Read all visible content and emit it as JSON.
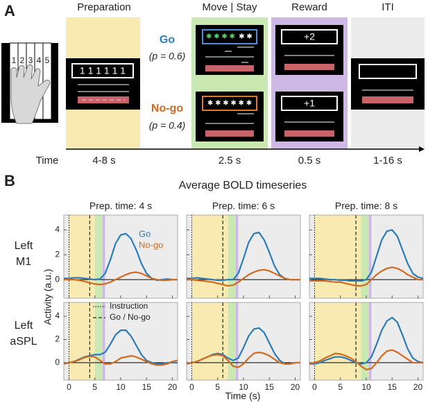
{
  "panel_a": {
    "label": "A",
    "phases": [
      "Preparation",
      "Move | Stay",
      "Reward",
      "ITI"
    ],
    "durations": [
      "4-8 s",
      "2.5 s",
      "0.5 s",
      "1-16 s"
    ],
    "time_label": "Time",
    "fingers": [
      "1",
      "2",
      "3",
      "4",
      "5"
    ],
    "prep_display": "1 1 1 1 1 1",
    "go": {
      "label": "Go",
      "prob": "(p = 0.6)",
      "color": "#2b7bb8",
      "stars_done": "✱ ✱ ✱ ✱",
      "stars_left": "✱ ✱",
      "reward": "+2"
    },
    "nogo": {
      "label": "No-go",
      "prob": "(p = 0.4)",
      "color": "#d2691e",
      "stars": "✱ ✱ ✱ ✱ ✱ ✱",
      "reward": "+1"
    }
  },
  "panel_b": {
    "label": "B",
    "title": "Average BOLD timeseries",
    "ylabel": "Activity (a.u.)",
    "xlabel": "Time (s)",
    "rows": [
      [
        "Left",
        "M1"
      ],
      [
        "Left",
        "aSPL"
      ]
    ],
    "legend_lines": [
      "Instruction",
      "Go / No-go"
    ]
  },
  "chart_data": [
    {
      "type": "line",
      "title": "Prep. time: 4 s",
      "legend": true,
      "x": [
        -1,
        0,
        1,
        2,
        3,
        4,
        5,
        6,
        7,
        8,
        9,
        10,
        11,
        12,
        13,
        14,
        15,
        16,
        17,
        18,
        19,
        20,
        21
      ],
      "series": [
        {
          "name": "Go",
          "color": "#2b7bb8",
          "values": [
            0.1,
            0.1,
            0.15,
            0.15,
            0.1,
            0.05,
            0,
            0.05,
            0.5,
            1.6,
            2.9,
            3.6,
            3.7,
            3.3,
            2.4,
            1.3,
            0.5,
            0.1,
            -0.05,
            0,
            0.05,
            0,
            0
          ]
        },
        {
          "name": "No-go",
          "color": "#d2691e",
          "values": [
            0,
            0,
            0,
            -0.05,
            -0.15,
            -0.25,
            -0.35,
            -0.4,
            -0.35,
            -0.2,
            0,
            0.2,
            0.4,
            0.55,
            0.6,
            0.5,
            0.3,
            0.1,
            0,
            -0.05,
            -0.05,
            0,
            0
          ]
        }
      ],
      "bands": [
        {
          "start": -1,
          "end": 0,
          "color": "#ececec"
        },
        {
          "start": 0,
          "end": 5,
          "color": "#f8eab0"
        },
        {
          "start": 5,
          "end": 6.5,
          "color": "#c9e8b2"
        },
        {
          "start": 6.5,
          "end": 7,
          "color": "#cdb8e6"
        },
        {
          "start": 7,
          "end": 21,
          "color": "#ececec"
        }
      ],
      "vlines": [
        {
          "x": 0,
          "style": "dotted"
        },
        {
          "x": 4,
          "style": "dashed"
        }
      ],
      "xlim": [
        -1,
        21
      ],
      "ylim": [
        -1.5,
        5.2
      ],
      "xticks": [
        0,
        5,
        10,
        15,
        20
      ],
      "yticks": [
        0,
        2,
        4
      ]
    },
    {
      "type": "line",
      "title": "Prep. time: 6 s",
      "legend": false,
      "x": [
        -1,
        0,
        1,
        2,
        3,
        4,
        5,
        6,
        7,
        8,
        9,
        10,
        11,
        12,
        13,
        14,
        15,
        16,
        17,
        18,
        19,
        20,
        21
      ],
      "series": [
        {
          "name": "Go",
          "color": "#2b7bb8",
          "values": [
            0.1,
            0.1,
            0.15,
            0.1,
            0.05,
            0,
            -0.05,
            -0.05,
            0,
            0,
            0.5,
            1.7,
            3,
            3.7,
            3.8,
            3.2,
            2.2,
            1.1,
            0.4,
            0.1,
            0,
            0,
            0
          ]
        },
        {
          "name": "No-go",
          "color": "#d2691e",
          "values": [
            0,
            0,
            -0.05,
            -0.1,
            -0.15,
            -0.2,
            -0.3,
            -0.4,
            -0.5,
            -0.45,
            -0.2,
            0.1,
            0.4,
            0.6,
            0.75,
            0.8,
            0.7,
            0.5,
            0.3,
            0.1,
            0,
            0,
            0
          ]
        }
      ],
      "bands": [
        {
          "start": -1,
          "end": 0,
          "color": "#ececec"
        },
        {
          "start": 0,
          "end": 7,
          "color": "#f8eab0"
        },
        {
          "start": 7,
          "end": 8.5,
          "color": "#c9e8b2"
        },
        {
          "start": 8.5,
          "end": 9,
          "color": "#cdb8e6"
        },
        {
          "start": 9,
          "end": 21,
          "color": "#ececec"
        }
      ],
      "vlines": [
        {
          "x": 0,
          "style": "dotted"
        },
        {
          "x": 6,
          "style": "dashed"
        }
      ],
      "xlim": [
        -1,
        21
      ],
      "ylim": [
        -1.5,
        5.2
      ],
      "xticks": [
        0,
        5,
        10,
        15,
        20
      ],
      "yticks": [
        0,
        2,
        4
      ]
    },
    {
      "type": "line",
      "title": "Prep. time: 8 s",
      "legend": false,
      "x": [
        -1,
        0,
        1,
        2,
        3,
        4,
        5,
        6,
        7,
        8,
        9,
        10,
        11,
        12,
        13,
        14,
        15,
        16,
        17,
        18,
        19,
        20,
        21
      ],
      "series": [
        {
          "name": "Go",
          "color": "#2b7bb8",
          "values": [
            0.1,
            0.1,
            0.1,
            0.05,
            0,
            0,
            -0.05,
            -0.05,
            -0.1,
            -0.1,
            -0.1,
            0,
            0.6,
            1.9,
            3.2,
            3.9,
            4,
            3.5,
            2.4,
            1.3,
            0.5,
            0.2,
            0.1
          ]
        },
        {
          "name": "No-go",
          "color": "#d2691e",
          "values": [
            -0.1,
            -0.1,
            -0.1,
            -0.1,
            -0.15,
            -0.2,
            -0.2,
            -0.3,
            -0.4,
            -0.5,
            -0.5,
            -0.4,
            0,
            0.4,
            0.7,
            0.9,
            1,
            0.9,
            0.7,
            0.4,
            0.2,
            0,
            0
          ]
        }
      ],
      "bands": [
        {
          "start": -1,
          "end": 0,
          "color": "#ececec"
        },
        {
          "start": 0,
          "end": 9,
          "color": "#f8eab0"
        },
        {
          "start": 9,
          "end": 10.5,
          "color": "#c9e8b2"
        },
        {
          "start": 10.5,
          "end": 11,
          "color": "#cdb8e6"
        },
        {
          "start": 11,
          "end": 21,
          "color": "#ececec"
        }
      ],
      "vlines": [
        {
          "x": 0,
          "style": "dotted"
        },
        {
          "x": 8,
          "style": "dashed"
        }
      ],
      "xlim": [
        -1,
        21
      ],
      "ylim": [
        -1.5,
        5.2
      ],
      "xticks": [
        0,
        5,
        10,
        15,
        20
      ],
      "yticks": [
        0,
        2,
        4
      ]
    },
    {
      "type": "line",
      "legend": false,
      "x": [
        -1,
        0,
        1,
        2,
        3,
        4,
        5,
        6,
        7,
        8,
        9,
        10,
        11,
        12,
        13,
        14,
        15,
        16,
        17,
        18,
        19,
        20,
        21
      ],
      "series": [
        {
          "name": "Go",
          "color": "#2b7bb8",
          "values": [
            -0.1,
            0,
            0.1,
            0.3,
            0.5,
            0.6,
            0.7,
            0.7,
            0.9,
            1.6,
            2.4,
            2.8,
            2.8,
            2.3,
            1.5,
            0.7,
            0.2,
            0,
            -0.1,
            -0.1,
            0,
            0,
            0
          ]
        },
        {
          "name": "No-go",
          "color": "#d2691e",
          "values": [
            -0.1,
            0,
            0.1,
            0.25,
            0.45,
            0.55,
            0.5,
            0.2,
            -0.1,
            -0.1,
            0.1,
            0.4,
            0.5,
            0.6,
            0.5,
            0.3,
            0.1,
            -0.1,
            -0.2,
            -0.2,
            -0.1,
            0.1,
            0.2
          ]
        }
      ],
      "bands": [
        {
          "start": -1,
          "end": 0,
          "color": "#ececec"
        },
        {
          "start": 0,
          "end": 5,
          "color": "#f8eab0"
        },
        {
          "start": 5,
          "end": 6.5,
          "color": "#c9e8b2"
        },
        {
          "start": 6.5,
          "end": 7,
          "color": "#cdb8e6"
        },
        {
          "start": 7,
          "end": 21,
          "color": "#ececec"
        }
      ],
      "vlines": [
        {
          "x": 0,
          "style": "dotted"
        },
        {
          "x": 4,
          "style": "dashed"
        }
      ],
      "xlim": [
        -1,
        21
      ],
      "ylim": [
        -1.5,
        5.2
      ],
      "xticks": [
        0,
        5,
        10,
        15,
        20
      ],
      "yticks": [
        0,
        2,
        4
      ]
    },
    {
      "type": "line",
      "legend": false,
      "x": [
        -1,
        0,
        1,
        2,
        3,
        4,
        5,
        6,
        7,
        8,
        9,
        10,
        11,
        12,
        13,
        14,
        15,
        16,
        17,
        18,
        19,
        20,
        21
      ],
      "series": [
        {
          "name": "Go",
          "color": "#2b7bb8",
          "values": [
            -0.1,
            0,
            0.1,
            0.3,
            0.5,
            0.7,
            0.8,
            0.7,
            0.4,
            0.2,
            0.4,
            1.3,
            2.3,
            2.9,
            3,
            2.6,
            1.7,
            0.8,
            0.2,
            -0.1,
            -0.1,
            0,
            0
          ]
        },
        {
          "name": "No-go",
          "color": "#d2691e",
          "values": [
            -0.1,
            0,
            0.1,
            0.3,
            0.5,
            0.65,
            0.7,
            0.6,
            0.2,
            -0.3,
            -0.4,
            -0.1,
            0.4,
            0.8,
            0.9,
            0.8,
            0.6,
            0.3,
            0,
            -0.1,
            -0.1,
            0,
            0
          ]
        }
      ],
      "bands": [
        {
          "start": -1,
          "end": 0,
          "color": "#ececec"
        },
        {
          "start": 0,
          "end": 7,
          "color": "#f8eab0"
        },
        {
          "start": 7,
          "end": 8.5,
          "color": "#c9e8b2"
        },
        {
          "start": 8.5,
          "end": 9,
          "color": "#cdb8e6"
        },
        {
          "start": 9,
          "end": 21,
          "color": "#ececec"
        }
      ],
      "vlines": [
        {
          "x": 0,
          "style": "dotted"
        },
        {
          "x": 6,
          "style": "dashed"
        }
      ],
      "xlim": [
        -1,
        21
      ],
      "ylim": [
        -1.5,
        5.2
      ],
      "xticks": [
        0,
        5,
        10,
        15,
        20
      ],
      "yticks": [
        0,
        2,
        4
      ]
    },
    {
      "type": "line",
      "legend": false,
      "x": [
        -1,
        0,
        1,
        2,
        3,
        4,
        5,
        6,
        7,
        8,
        9,
        10,
        11,
        12,
        13,
        14,
        15,
        16,
        17,
        18,
        19,
        20,
        21
      ],
      "series": [
        {
          "name": "Go",
          "color": "#2b7bb8",
          "values": [
            -0.1,
            -0.1,
            0,
            0.2,
            0.35,
            0.5,
            0.5,
            0.4,
            0.2,
            0,
            -0.1,
            0,
            0.5,
            1.6,
            2.8,
            3.6,
            3.9,
            3.5,
            2.4,
            1.2,
            0.4,
            0.1,
            0
          ]
        },
        {
          "name": "No-go",
          "color": "#d2691e",
          "values": [
            -0.1,
            0,
            0.15,
            0.4,
            0.6,
            0.8,
            0.75,
            0.6,
            0.4,
            0.1,
            -0.3,
            -0.6,
            -0.5,
            0,
            0.6,
            1,
            1.1,
            0.9,
            0.6,
            0.3,
            0,
            0,
            0
          ]
        }
      ],
      "bands": [
        {
          "start": -1,
          "end": 0,
          "color": "#ececec"
        },
        {
          "start": 0,
          "end": 9,
          "color": "#f8eab0"
        },
        {
          "start": 9,
          "end": 10.5,
          "color": "#c9e8b2"
        },
        {
          "start": 10.5,
          "end": 11,
          "color": "#cdb8e6"
        },
        {
          "start": 11,
          "end": 21,
          "color": "#ececec"
        }
      ],
      "vlines": [
        {
          "x": 0,
          "style": "dotted"
        },
        {
          "x": 8,
          "style": "dashed"
        }
      ],
      "xlim": [
        -1,
        21
      ],
      "ylim": [
        -1.5,
        5.2
      ],
      "xticks": [
        0,
        5,
        10,
        15,
        20
      ],
      "yticks": [
        0,
        2,
        4
      ]
    }
  ]
}
